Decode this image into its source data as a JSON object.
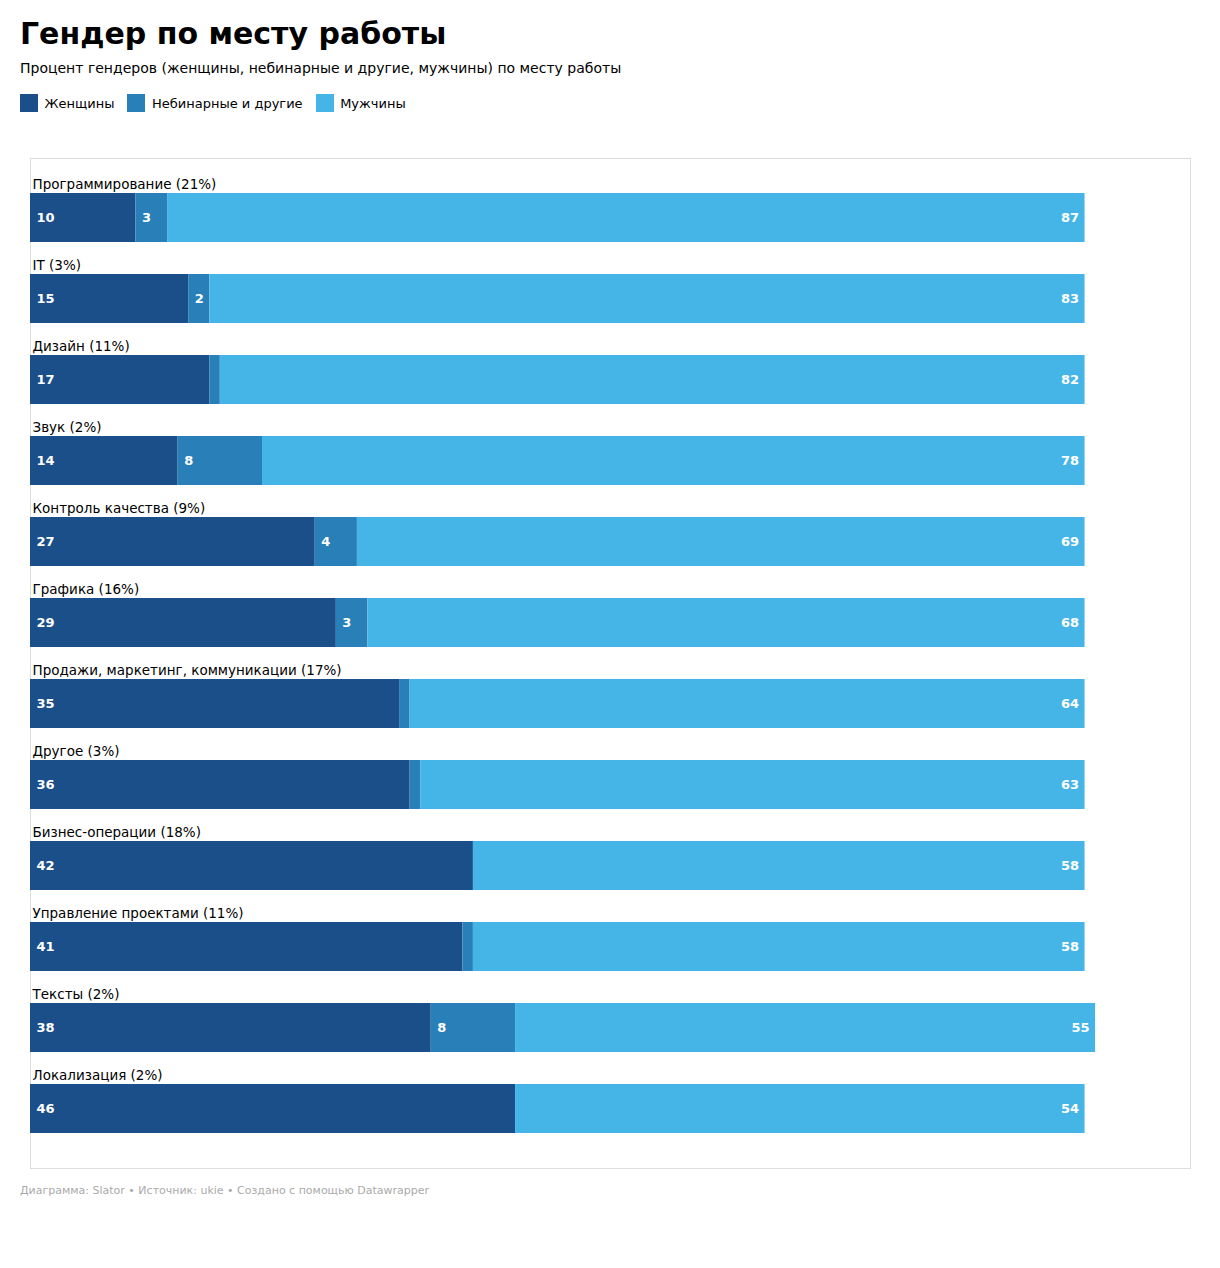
{
  "chart_data": {
    "type": "bar",
    "orientation": "horizontal",
    "stacked": true,
    "data_labels": true,
    "tick_labels": false,
    "grid": false,
    "legend": "top left",
    "title": "Гендер по месту работы",
    "subtitle": "Процент гендеров (женщины, небинарные и другие, мужчины) по месту работы",
    "caption": "Диаграмма: Slator • Источник: ukie • Создано с помощью Datawrapper",
    "categories": [
      "Программирование (21%)",
      "IT (3%)",
      "Дизайн (11%)",
      "Звук (2%)",
      "Контроль качества (9%)",
      "Графика (16%)",
      "Продажи, маркетинг, коммуникации (17%)",
      "Другое (3%)",
      "Бизнес-операции (18%)",
      "Управление проектами (11%)",
      "Тексты (2%)",
      "Локализация (2%)"
    ],
    "series": [
      {
        "name": "Женщины",
        "color": "#1b4f8a",
        "values": [
          10,
          15,
          17,
          14,
          27,
          29,
          35,
          36,
          42,
          41,
          38,
          46
        ]
      },
      {
        "name": "Небинарные и другие",
        "color": "#2980b9",
        "values": [
          3,
          2,
          1,
          8,
          4,
          3,
          1,
          1,
          0,
          1,
          8,
          0
        ],
        "value_labels": [
          "3",
          "2",
          null,
          "8",
          "4",
          "3",
          null,
          null,
          null,
          null,
          "8",
          null
        ]
      },
      {
        "name": "Мужчины",
        "color": "#45b5e8",
        "values": [
          87,
          83,
          82,
          78,
          69,
          68,
          64,
          63,
          58,
          58,
          55,
          54
        ]
      }
    ],
    "xlim": [
      0,
      110
    ]
  }
}
